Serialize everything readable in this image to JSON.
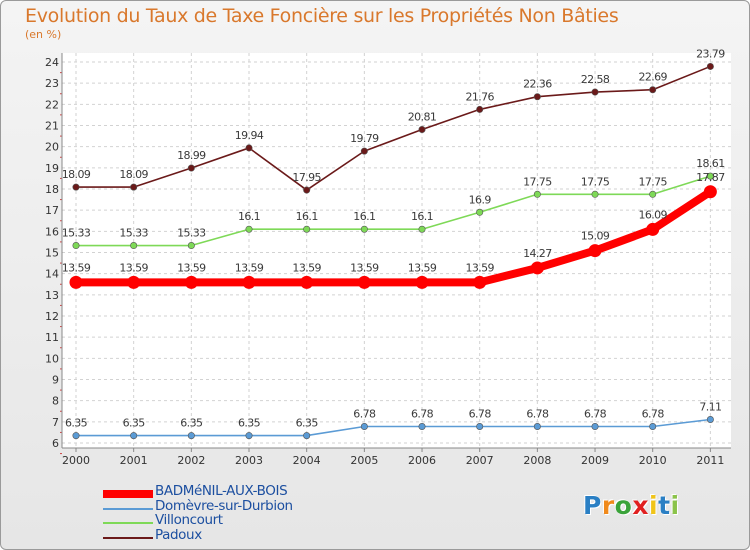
{
  "title": "Evolution du Taux de Taxe Foncière sur les Propriétés Non Bâties",
  "subtitle": "(en %)",
  "chart_data": {
    "type": "line",
    "x": [
      "2000",
      "2001",
      "2002",
      "2003",
      "2004",
      "2005",
      "2006",
      "2007",
      "2008",
      "2009",
      "2010",
      "2011"
    ],
    "ylim": [
      6,
      24
    ],
    "yticks": [
      "6",
      "7",
      "8",
      "9",
      "10",
      "11",
      "12",
      "13",
      "14",
      "15",
      "16",
      "17",
      "18",
      "19",
      "20",
      "21",
      "22",
      "23",
      "24"
    ],
    "grid": true,
    "legend_position": "bottom-left",
    "series": [
      {
        "name": "BADMéNIL-AUX-BOIS",
        "color": "#ff0000",
        "values": [
          13.59,
          13.59,
          13.59,
          13.59,
          13.59,
          13.59,
          13.59,
          13.59,
          14.27,
          15.09,
          16.09,
          17.87
        ],
        "labels": [
          "13.59",
          "13.59",
          "13.59",
          "13.59",
          "13.59",
          "13.59",
          "13.59",
          "13.59",
          "14.27",
          "15.09",
          "16.09",
          "17.87"
        ]
      },
      {
        "name": "Domèvre-sur-Durbion",
        "color": "#5b9bd5",
        "values": [
          6.35,
          6.35,
          6.35,
          6.35,
          6.35,
          6.78,
          6.78,
          6.78,
          6.78,
          6.78,
          6.78,
          7.11
        ],
        "labels": [
          "6.35",
          "6.35",
          "6.35",
          "6.35",
          "6.35",
          "6.78",
          "6.78",
          "6.78",
          "6.78",
          "6.78",
          "6.78",
          "7.11"
        ]
      },
      {
        "name": "Villoncourt",
        "color": "#7ed957",
        "values": [
          15.33,
          15.33,
          15.33,
          16.1,
          16.1,
          16.1,
          16.1,
          16.9,
          17.75,
          17.75,
          17.75,
          18.61
        ],
        "labels": [
          "15.33",
          "15.33",
          "15.33",
          "16.1",
          "16.1",
          "16.1",
          "16.1",
          "16.9",
          "17.75",
          "17.75",
          "17.75",
          "18.61"
        ]
      },
      {
        "name": "Padoux",
        "color": "#6b1a1a",
        "values": [
          18.09,
          18.09,
          18.99,
          19.94,
          17.95,
          19.79,
          20.81,
          21.76,
          22.36,
          22.58,
          22.69,
          23.79
        ],
        "labels": [
          "18.09",
          "18.09",
          "18.99",
          "19.94",
          "17.95",
          "19.79",
          "20.81",
          "21.76",
          "22.36",
          "22.58",
          "22.69",
          "23.79"
        ]
      }
    ]
  },
  "logo": {
    "letters": [
      "P",
      "r",
      "o",
      "x",
      "i",
      "t",
      "i"
    ],
    "colors": [
      "#2a7fc4",
      "#f08a1c",
      "#3aa33a",
      "#e02020",
      "#f0c419",
      "#2a7fc4",
      "#8bc34a"
    ]
  }
}
